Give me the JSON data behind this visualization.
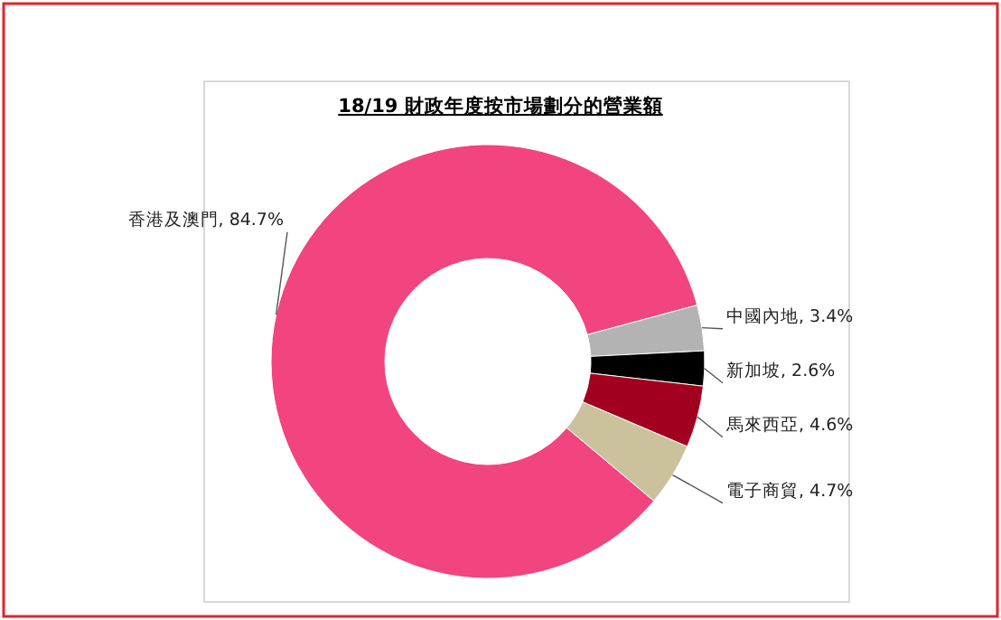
{
  "chart_data": {
    "type": "donut",
    "title": "18/19 財政年度按市場劃分的營業額",
    "categories": [
      "香港及澳門",
      "中國內地",
      "新加坡",
      "馬來西亞",
      "電子商貿"
    ],
    "values": [
      84.7,
      3.4,
      2.6,
      4.6,
      4.7
    ],
    "colors": [
      "#f2447f",
      "#b3b3b3",
      "#000000",
      "#a3001f",
      "#cbc29d"
    ],
    "value_labels": [
      "84.7%",
      "3.4%",
      "2.6%",
      "4.6%",
      "4.7%"
    ],
    "data_labels": true
  }
}
